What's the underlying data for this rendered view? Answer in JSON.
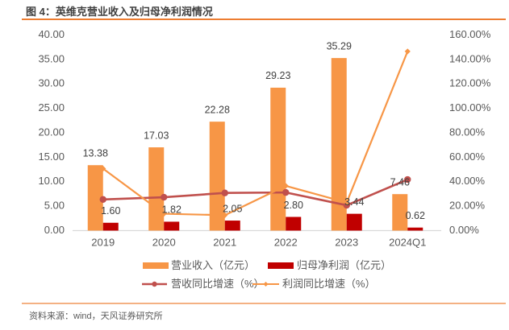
{
  "header": {
    "title": "图 4：英维克营业收入及归母净利润情况"
  },
  "footer": {
    "source": "资料来源：wind，天风证券研究所"
  },
  "colors": {
    "revenue_bar": "#F79646",
    "net_profit_bar": "#C00000",
    "revenue_growth_line": "#C0504D",
    "profit_growth_line": "#F79646",
    "title_rule": "#ED7D31",
    "footer_rule": "#F4B183",
    "axis_line": "#D9D9D9",
    "tick_text": "#595959",
    "data_label_text": "#404040"
  },
  "chart_data": {
    "type": "bar",
    "title": "英维克营业收入及归母净利润情况",
    "xlabel": "",
    "ylabel": "",
    "grid": false,
    "legend": {
      "position": "bottom"
    },
    "categories": [
      "2019",
      "2020",
      "2021",
      "2022",
      "2023",
      "2024Q1"
    ],
    "y_left": {
      "range": [
        0,
        40
      ],
      "ticks": [
        "0.00",
        "5.00",
        "10.00",
        "15.00",
        "20.00",
        "25.00",
        "30.00",
        "35.00",
        "40.00"
      ]
    },
    "y_right": {
      "range": [
        0,
        160
      ],
      "unit": "%",
      "ticks": [
        "0.00%",
        "20.00%",
        "40.00%",
        "60.00%",
        "80.00%",
        "100.00%",
        "120.00%",
        "140.00%",
        "160.00%"
      ]
    },
    "series": [
      {
        "name": "营业收入（亿元）",
        "type": "bar",
        "axis": "left",
        "color": "#F79646",
        "values": [
          13.38,
          17.03,
          22.28,
          29.23,
          35.29,
          7.46
        ],
        "labels": [
          "13.38",
          "17.03",
          "22.28",
          "29.23",
          "35.29",
          "7.46"
        ]
      },
      {
        "name": "归母净利润（亿元）",
        "type": "bar",
        "axis": "left",
        "color": "#C00000",
        "values": [
          1.6,
          1.82,
          2.05,
          2.8,
          3.44,
          0.62
        ],
        "labels": [
          "1.60",
          "1.82",
          "2.05",
          "2.80",
          "3.44",
          "0.62"
        ]
      },
      {
        "name": "营收同比增速（%）",
        "type": "line",
        "axis": "right",
        "marker": "circle",
        "color": "#C0504D",
        "values": [
          25.5,
          27.3,
          30.8,
          31.2,
          20.7,
          41.8
        ]
      },
      {
        "name": "利润同比增速（%）",
        "type": "line",
        "axis": "right",
        "marker": "diamond",
        "color": "#F79646",
        "values": [
          50.7,
          13.8,
          12.6,
          36.6,
          22.9,
          146.6
        ]
      }
    ]
  }
}
